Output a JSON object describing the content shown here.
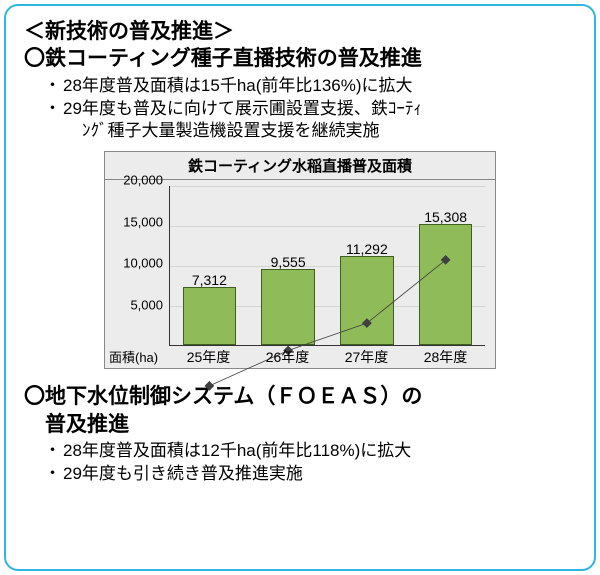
{
  "frame_border_color": "#2fb6e0",
  "header": "＜新技術の普及推進＞",
  "section1": {
    "title": "鉄コーティング種子直播技術の普及推進",
    "bullet1": "28年度普及面積は15千ha(前年比136%)に拡大",
    "bullet2a": "29年度も普及に向けて展示圃設置支援、鉄ｺｰﾃｨ",
    "bullet2b": "ﾝｸﾞ種子大量製造機設置支援を継続実施"
  },
  "chart": {
    "title": "鉄コーティング水稲直播普及面積",
    "type": "bar",
    "categories": [
      "25年度",
      "26年度",
      "27年度",
      "28年度"
    ],
    "values": [
      7312,
      9555,
      11292,
      15308
    ],
    "value_labels": [
      "7,312",
      "9,555",
      "11,292",
      "15,308"
    ],
    "axis_label": "面積(ha)",
    "ymin": 0,
    "ymax": 20000,
    "yticks": [
      5000,
      10000,
      15000,
      20000
    ],
    "ytick_labels": [
      "5,000",
      "10,000",
      "15,000",
      "20,000"
    ],
    "bar_color": "#8fbb58",
    "bg_color": "#ececec",
    "grid_color": "#d5d5d5",
    "chart_border_color": "#888888",
    "trend_color": "#404040"
  },
  "section2": {
    "title_line1": "地下水位制御システム（ＦＯＥＡＳ）の",
    "title_line2": "普及推進",
    "bullet1": "28年度普及面積は12千ha(前年比118%)に拡大",
    "bullet2": "29年度も引き続き普及推進実施"
  }
}
